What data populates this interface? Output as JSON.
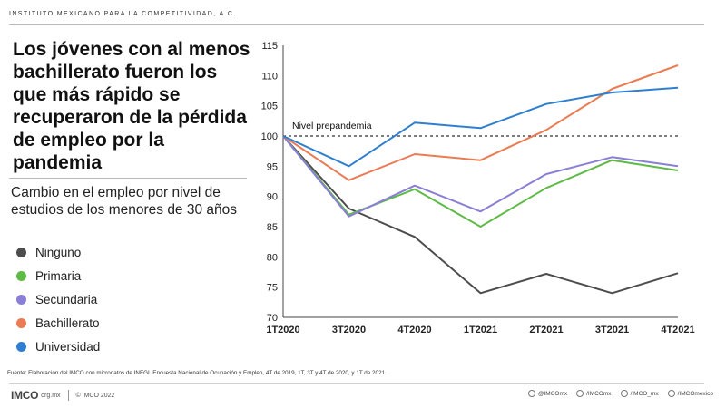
{
  "header": {
    "org": "INSTITUTO MEXICANO PARA LA COMPETITIVIDAD, A.C."
  },
  "title": "Los jóvenes con al menos bachillerato fueron los que más rápido se recuperaron de la pérdida de empleo por la pandemia",
  "subtitle": "Cambio en el empleo por nivel de estudios de los menores de 30 años",
  "chart_data": {
    "type": "line",
    "categories": [
      "1T2020",
      "3T2020",
      "4T2020",
      "1T2021",
      "2T2021",
      "3T2021",
      "4T2021"
    ],
    "ylim": [
      70,
      115
    ],
    "yticks": [
      70,
      75,
      80,
      85,
      90,
      95,
      100,
      105,
      110,
      115
    ],
    "grid": false,
    "legend_position": "left",
    "reference_line": {
      "value": 100,
      "label": "Nivel prepandemia"
    },
    "series": [
      {
        "name": "Ninguno",
        "color": "#4d4d4d",
        "values": [
          100,
          88.0,
          83.3,
          74.0,
          77.2,
          74.0,
          77.3
        ]
      },
      {
        "name": "Primaria",
        "color": "#5dbb46",
        "values": [
          100,
          87.0,
          91.2,
          85.0,
          91.4,
          96.0,
          94.3
        ]
      },
      {
        "name": "Secundaria",
        "color": "#8a7fd6",
        "values": [
          100,
          86.7,
          91.8,
          87.5,
          93.7,
          96.5,
          95.0
        ]
      },
      {
        "name": "Bachillerato",
        "color": "#ea7b53",
        "values": [
          100,
          92.7,
          97.0,
          96.0,
          101.0,
          107.8,
          111.7
        ]
      },
      {
        "name": "Universidad",
        "color": "#2f7fd1",
        "values": [
          100,
          95.0,
          102.2,
          101.3,
          105.3,
          107.2,
          108.0
        ]
      }
    ]
  },
  "source": "Fuente: Elaboración del IMCO con microdatos de INEGI. Encuesta Nacional de Ocupación y Empleo, 4T de 2019, 1T, 3T y 4T de 2020, y 1T de 2021.",
  "footer": {
    "logo": "IMCO",
    "site": "org.mx",
    "copyright": "© IMCO 2022",
    "social": [
      {
        "icon": "twitter-icon",
        "label": "@IMCOmx"
      },
      {
        "icon": "facebook-icon",
        "label": "/IMCOmx"
      },
      {
        "icon": "instagram-icon",
        "label": "/IMCO_mx"
      },
      {
        "icon": "youtube-icon",
        "label": "/IMCOmexico"
      }
    ]
  }
}
